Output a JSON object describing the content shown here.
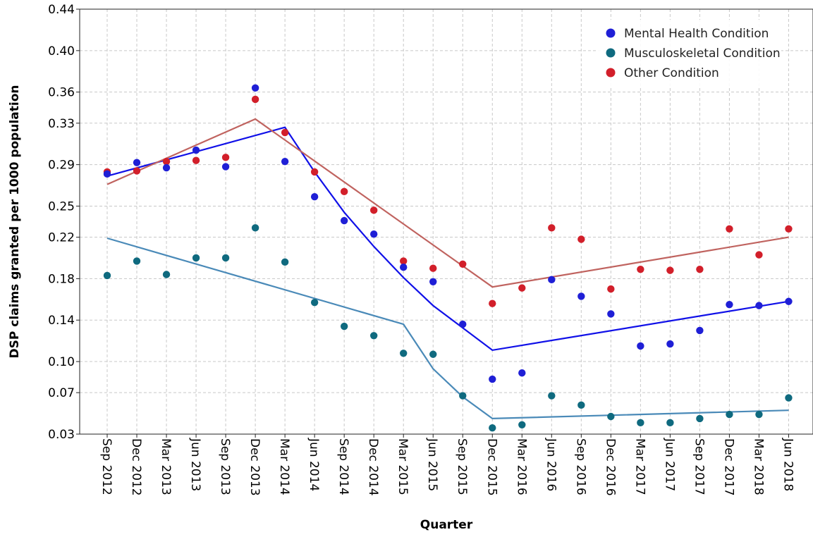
{
  "chart_data": {
    "type": "scatter",
    "title": "",
    "xlabel": "Quarter",
    "ylabel": "DSP claims granted per 1000 population",
    "ylim": [
      0.03,
      0.44
    ],
    "yticks": [
      "0.03",
      "0.07",
      "0.10",
      "0.14",
      "0.18",
      "0.22",
      "0.25",
      "0.29",
      "0.33",
      "0.36",
      "0.40",
      "0.44"
    ],
    "grid": true,
    "legend_position": "top-right",
    "categories": [
      "Sep 2012",
      "Dec 2012",
      "Mar 2013",
      "Jun 2013",
      "Sep 2013",
      "Dec 2013",
      "Mar 2014",
      "Jun 2014",
      "Sep 2014",
      "Dec 2014",
      "Mar 2015",
      "Jun 2015",
      "Sep 2015",
      "Dec 2015",
      "Mar 2016",
      "Jun 2016",
      "Sep 2016",
      "Dec 2016",
      "Mar 2017",
      "Jun 2017",
      "Sep 2017",
      "Dec 2017",
      "Mar 2018",
      "Jun 2018"
    ],
    "series": [
      {
        "name": "Mental Health Condition",
        "color": "#1f1fd6",
        "line_color": "#1010e8",
        "values": [
          0.281,
          0.292,
          0.287,
          0.304,
          0.288,
          0.364,
          0.293,
          0.259,
          0.236,
          0.223,
          0.191,
          0.177,
          0.136,
          0.083,
          0.089,
          0.179,
          0.163,
          0.146,
          0.115,
          0.117,
          0.13,
          0.155,
          0.154,
          0.158
        ],
        "trend": [
          [
            0,
            0.279
          ],
          [
            6,
            0.326
          ],
          [
            7,
            0.283
          ],
          [
            8,
            0.244
          ],
          [
            9,
            0.211
          ],
          [
            10,
            0.181
          ],
          [
            11,
            0.154
          ],
          [
            13,
            0.111
          ],
          [
            23,
            0.158
          ]
        ]
      },
      {
        "name": "Musculoskeletal Condition",
        "color": "#0f6a7f",
        "line_color": "#4a8ab8",
        "values": [
          0.183,
          0.197,
          0.184,
          0.2,
          0.2,
          0.229,
          0.196,
          0.157,
          0.134,
          0.125,
          0.108,
          0.107,
          0.067,
          0.036,
          0.039,
          0.067,
          0.058,
          0.047,
          0.041,
          0.041,
          0.045,
          0.049,
          0.049,
          0.065
        ],
        "trend": [
          [
            0,
            0.219
          ],
          [
            10,
            0.136
          ],
          [
            11,
            0.093
          ],
          [
            12,
            0.066
          ],
          [
            13,
            0.045
          ],
          [
            23,
            0.053
          ]
        ]
      },
      {
        "name": "Other Condition",
        "color": "#d21f2a",
        "line_color": "#c0635f",
        "values": [
          0.283,
          0.284,
          0.293,
          0.294,
          0.297,
          0.353,
          0.321,
          0.283,
          0.264,
          0.246,
          0.197,
          0.19,
          0.194,
          0.156,
          0.171,
          0.229,
          0.218,
          0.17,
          0.189,
          0.188,
          0.189,
          0.228,
          0.203,
          0.228
        ],
        "trend": [
          [
            0,
            0.271
          ],
          [
            5,
            0.334
          ],
          [
            13,
            0.172
          ],
          [
            23,
            0.22
          ]
        ]
      }
    ]
  }
}
